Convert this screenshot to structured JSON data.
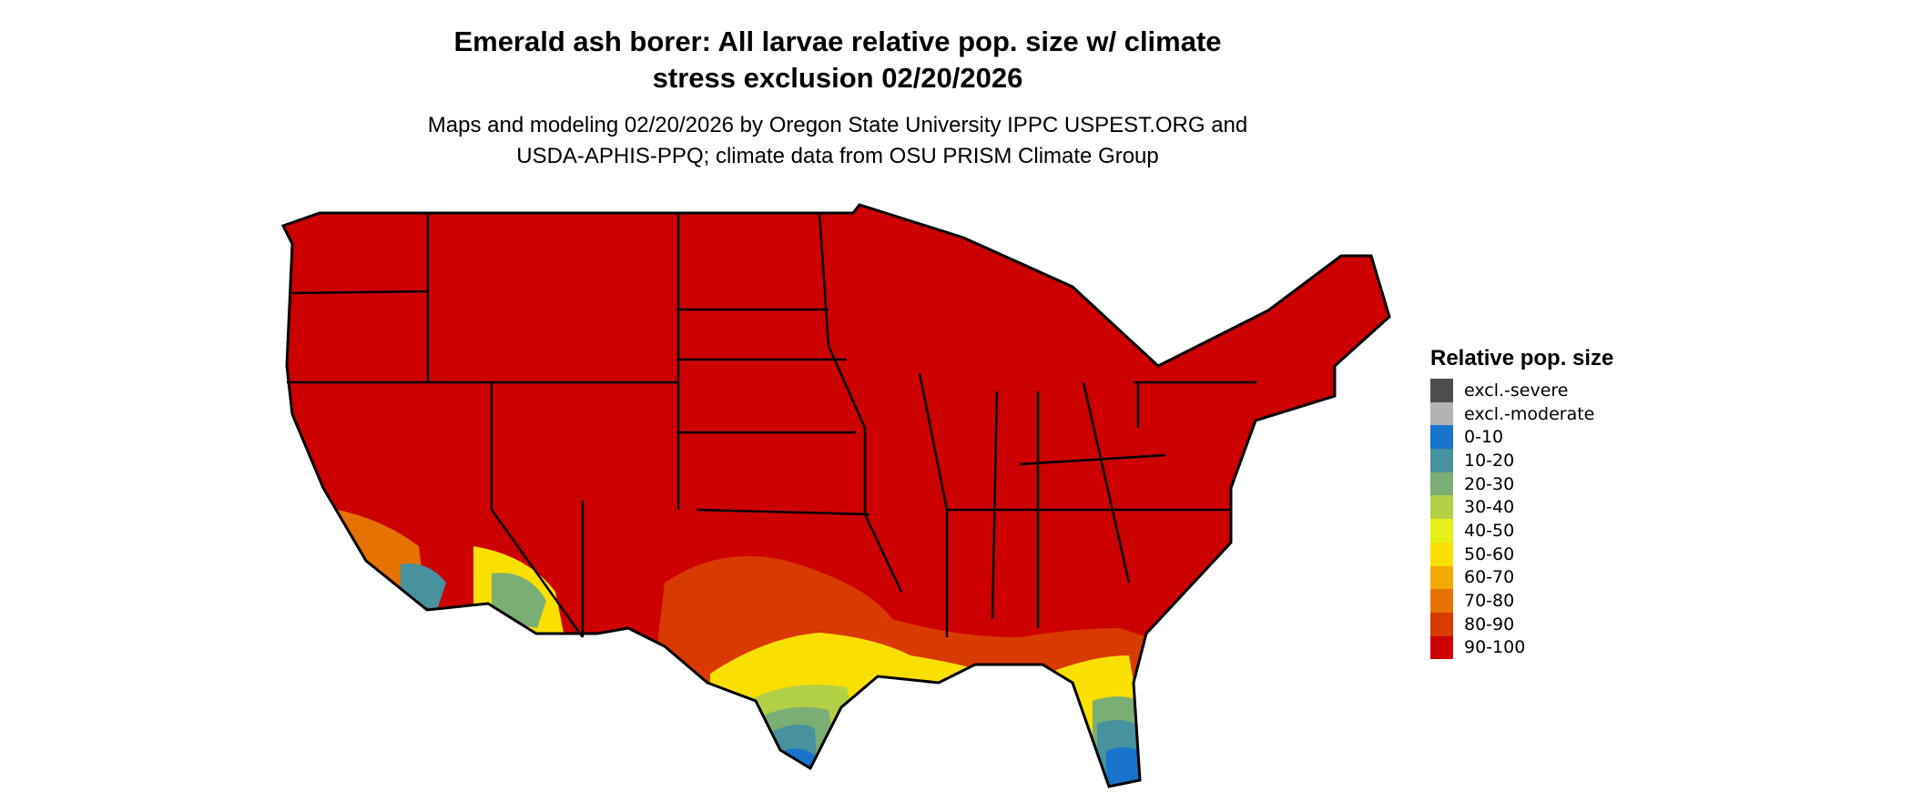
{
  "title_lines": [
    "Emerald ash borer: All larvae relative pop. size w/ climate",
    "stress exclusion 02/20/2026"
  ],
  "subtitle_lines": [
    "Maps and modeling 02/20/2026 by Oregon State University IPPC USPEST.ORG and",
    "USDA-APHIS-PPQ; climate data from OSU PRISM Climate Group"
  ],
  "map": {
    "region": "Contiguous United States",
    "dominant_class": "90-100",
    "state_borders": true
  },
  "legend": {
    "title": "Relative pop. size",
    "items": [
      {
        "label": "excl.-severe",
        "color": "#4d4d4d"
      },
      {
        "label": "excl.-moderate",
        "color": "#b3b3b3"
      },
      {
        "label": "0-10",
        "color": "#1874cd"
      },
      {
        "label": "10-20",
        "color": "#48919e"
      },
      {
        "label": "20-30",
        "color": "#7bae74"
      },
      {
        "label": "30-40",
        "color": "#b2d046"
      },
      {
        "label": "40-50",
        "color": "#e5f016"
      },
      {
        "label": "50-60",
        "color": "#f9e000"
      },
      {
        "label": "60-70",
        "color": "#f2a900"
      },
      {
        "label": "70-80",
        "color": "#e67300"
      },
      {
        "label": "80-90",
        "color": "#d93a00"
      },
      {
        "label": "90-100",
        "color": "#cc0000"
      }
    ]
  }
}
